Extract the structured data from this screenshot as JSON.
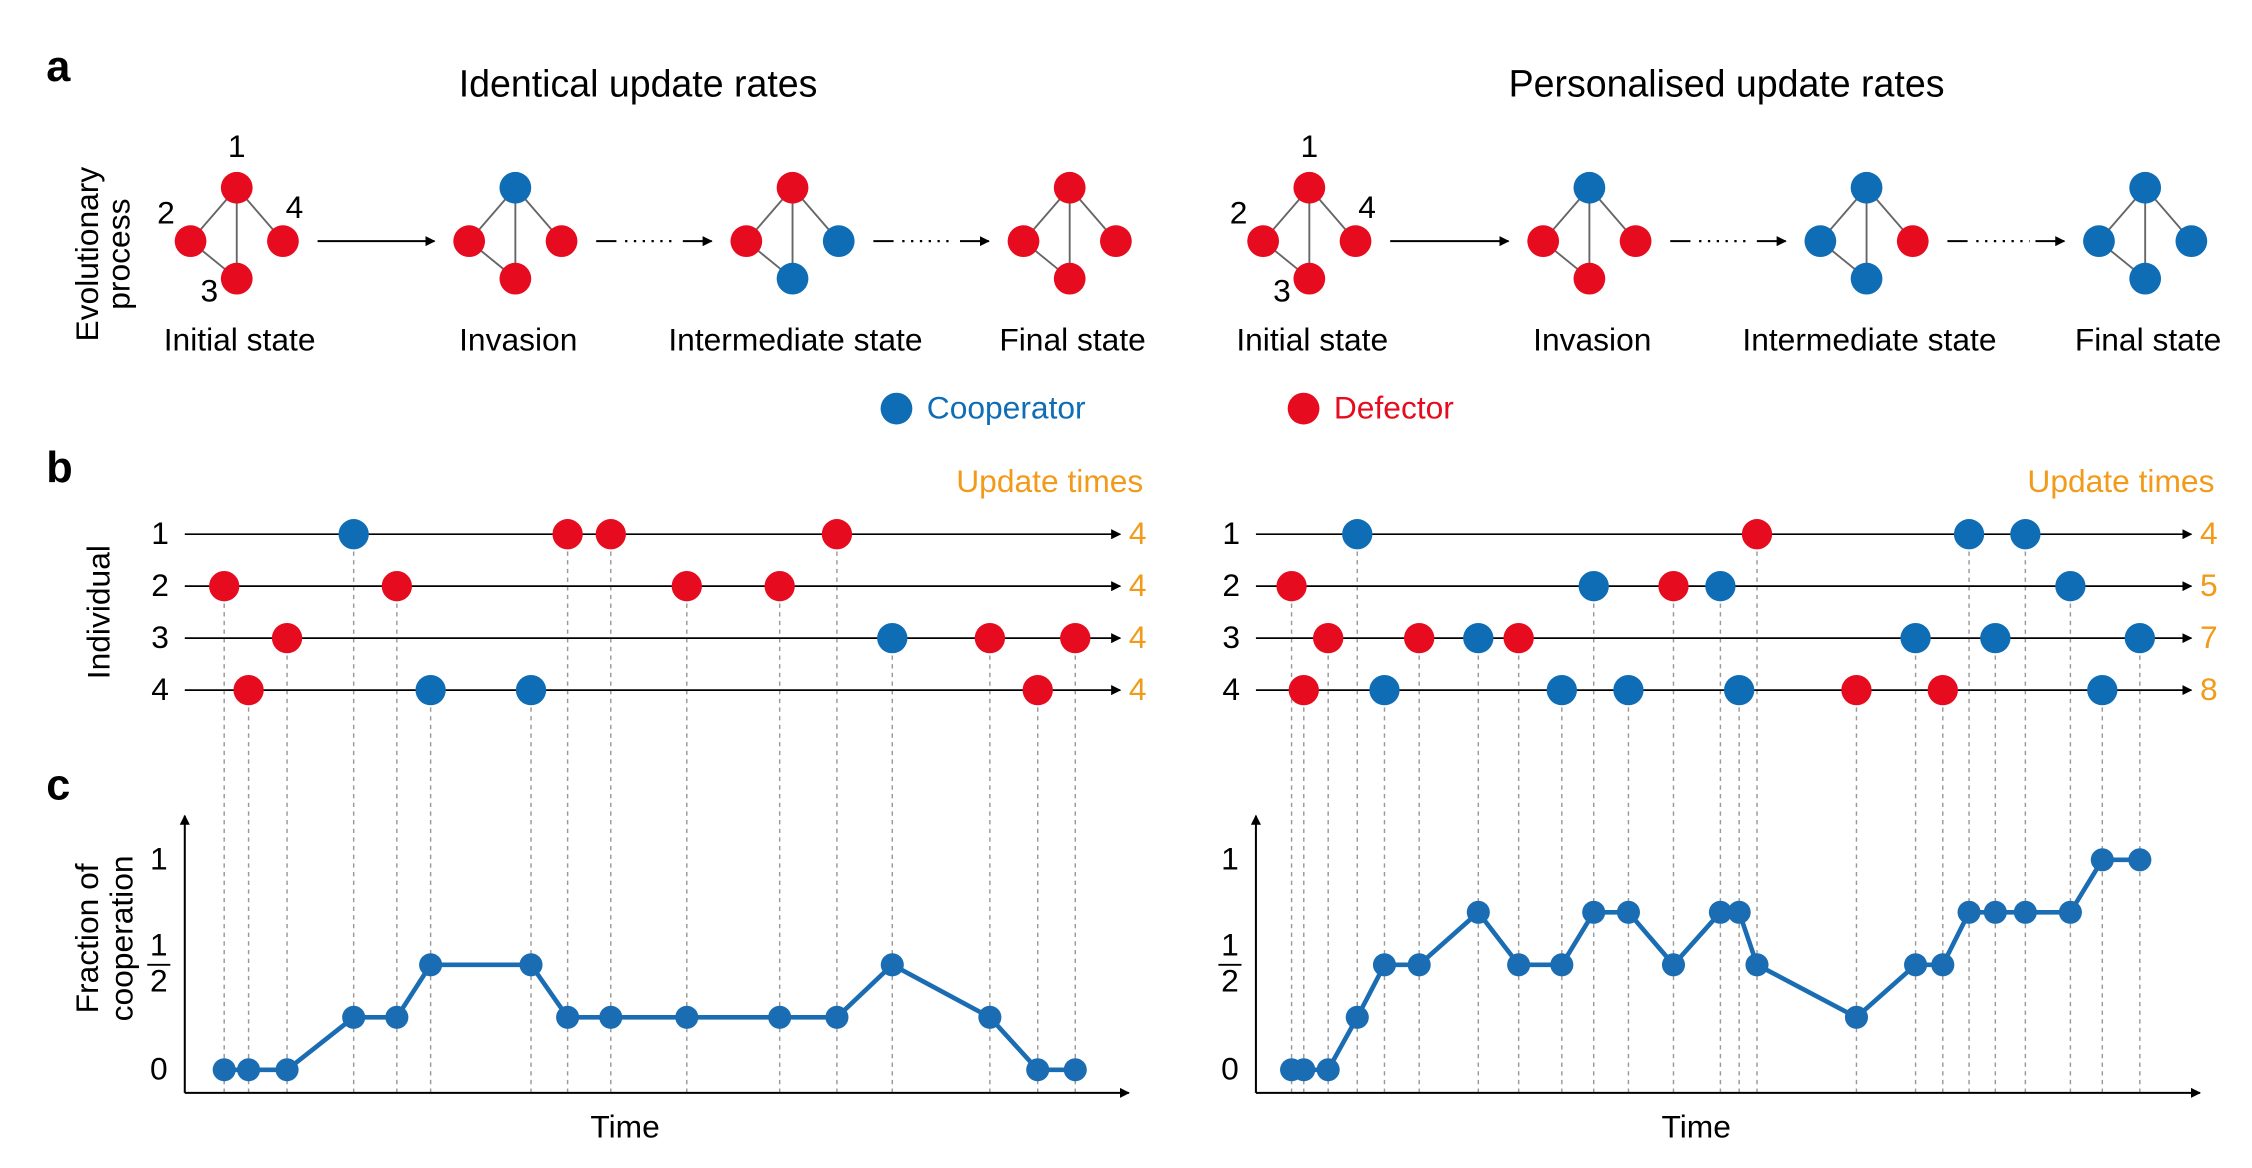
{
  "panel_a": {
    "letter": "a",
    "y_label": [
      "Evolutionary",
      "process"
    ],
    "legend": [
      {
        "label": "Cooperator",
        "color": "#0f6db6"
      },
      {
        "label": "Defector",
        "color": "#e60b1e"
      }
    ],
    "sides": [
      {
        "title": "Identical update rates",
        "states": [
          {
            "label": "Initial state",
            "nodes": [
              1,
              1,
              1,
              1
            ],
            "node_labels": [
              "1",
              "2",
              "3",
              "4"
            ]
          },
          {
            "label": "Invasion",
            "nodes": [
              0,
              1,
              1,
              1
            ]
          },
          {
            "label": "Intermediate state",
            "nodes": [
              1,
              1,
              0,
              0
            ]
          },
          {
            "label": "Final state",
            "nodes": [
              1,
              1,
              1,
              1
            ]
          }
        ]
      },
      {
        "title": "Personalised update rates",
        "states": [
          {
            "label": "Initial state",
            "nodes": [
              1,
              1,
              1,
              1
            ],
            "node_labels": [
              "1",
              "2",
              "3",
              "4"
            ]
          },
          {
            "label": "Invasion",
            "nodes": [
              0,
              1,
              1,
              1
            ]
          },
          {
            "label": "Intermediate state",
            "nodes": [
              0,
              0,
              0,
              1
            ]
          },
          {
            "label": "Final state",
            "nodes": [
              0,
              0,
              0,
              0
            ]
          }
        ]
      }
    ]
  },
  "panel_b": {
    "letter": "b",
    "y_label": "Individual",
    "sides": [
      {
        "update_times_label": "Update times",
        "rows": [
          {
            "label": "1",
            "update_count": 4,
            "times": [
              18.0,
              40.8,
              45.4,
              69.5
            ],
            "strategies": [
              0,
              1,
              1,
              1
            ]
          },
          {
            "label": "2",
            "update_count": 4,
            "times": [
              4.2,
              22.6,
              53.5,
              63.4
            ],
            "strategies": [
              1,
              1,
              1,
              1
            ]
          },
          {
            "label": "3",
            "update_count": 4,
            "times": [
              10.9,
              75.4,
              85.8,
              94.9
            ],
            "strategies": [
              1,
              0,
              1,
              1
            ]
          },
          {
            "label": "4",
            "update_count": 4,
            "times": [
              6.8,
              26.2,
              36.9,
              90.9
            ],
            "strategies": [
              1,
              0,
              0,
              1
            ]
          }
        ]
      },
      {
        "update_times_label": "Update times",
        "rows": [
          {
            "label": "1",
            "update_count": 4,
            "times": [
              10.8,
              53.4,
              76.0,
              82.0
            ],
            "strategies": [
              0,
              1,
              0,
              0
            ]
          },
          {
            "label": "2",
            "update_count": 5,
            "times": [
              3.8,
              36.0,
              44.5,
              49.5,
              86.8
            ],
            "strategies": [
              1,
              0,
              1,
              0,
              0
            ]
          },
          {
            "label": "3",
            "update_count": 7,
            "times": [
              7.7,
              17.4,
              23.7,
              28.0,
              70.3,
              78.8,
              94.2
            ],
            "strategies": [
              1,
              1,
              0,
              1,
              0,
              0,
              0
            ]
          },
          {
            "label": "4",
            "update_count": 8,
            "times": [
              5.1,
              13.7,
              32.6,
              39.7,
              51.5,
              64.0,
              73.2,
              90.2
            ],
            "strategies": [
              1,
              0,
              0,
              0,
              0,
              1,
              1,
              0
            ]
          }
        ]
      }
    ]
  },
  "panel_c": {
    "letter": "c"
  },
  "chart_data": [
    {
      "type": "line",
      "y_label": [
        "Fraction of",
        "cooperation"
      ],
      "x_label": "Time",
      "color": "#1a6db3",
      "x": [
        4.2,
        6.8,
        10.9,
        18.0,
        22.6,
        26.2,
        36.9,
        40.8,
        45.4,
        53.5,
        63.4,
        69.5,
        75.4,
        85.8,
        90.9,
        94.9
      ],
      "values": [
        0,
        0,
        0,
        0.25,
        0.25,
        0.5,
        0.5,
        0.25,
        0.25,
        0.25,
        0.25,
        0.25,
        0.5,
        0.25,
        0,
        0
      ],
      "xlim": [
        0,
        100
      ],
      "ylim": [
        -0.11,
        1.21
      ],
      "yticks": [
        0,
        {
          "value": 0.5,
          "label": "1/2"
        },
        1
      ]
    },
    {
      "type": "line",
      "x_label": "Time",
      "color": "#1a6db3",
      "x": [
        3.8,
        5.1,
        7.7,
        10.8,
        13.7,
        17.4,
        23.7,
        28.0,
        32.6,
        36.0,
        39.7,
        44.5,
        49.5,
        51.5,
        53.4,
        64.0,
        70.3,
        73.2,
        76.0,
        78.8,
        82.0,
        86.8,
        90.2,
        94.2
      ],
      "values": [
        0,
        0,
        0,
        0.25,
        0.5,
        0.5,
        0.75,
        0.5,
        0.5,
        0.75,
        0.75,
        0.5,
        0.75,
        0.75,
        0.5,
        0.25,
        0.5,
        0.5,
        0.75,
        0.75,
        0.75,
        0.75,
        1,
        1
      ],
      "xlim": [
        0,
        100
      ],
      "ylim": [
        -0.11,
        1.21
      ],
      "yticks": [
        0,
        {
          "value": 0.5,
          "label": "1/2"
        },
        1
      ]
    }
  ]
}
